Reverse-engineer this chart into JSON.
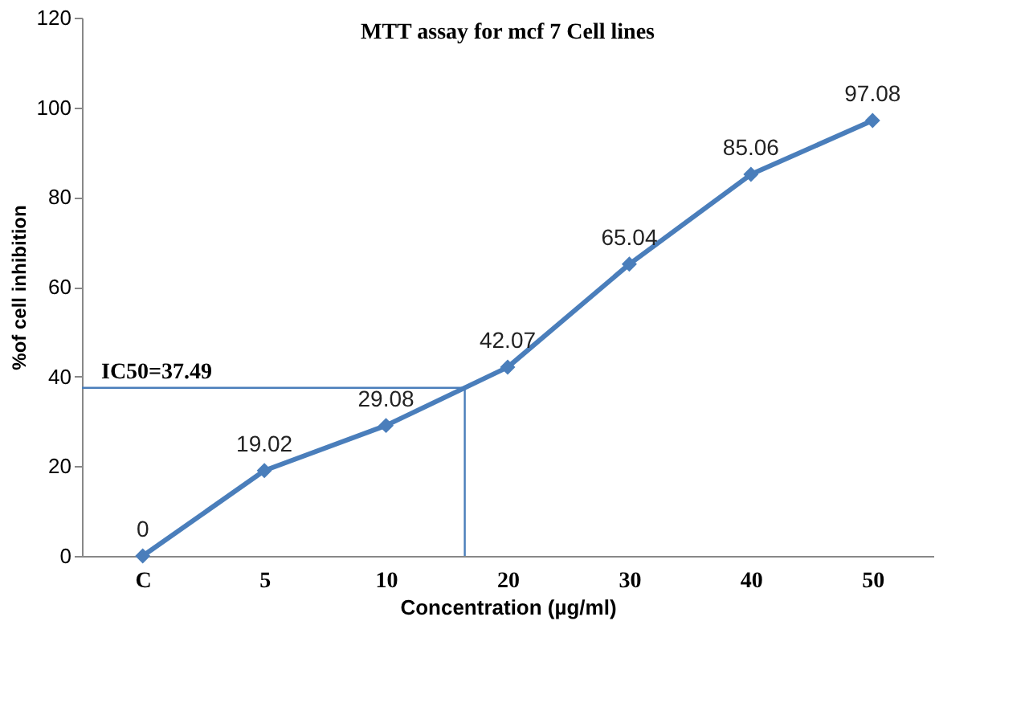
{
  "chart_data": {
    "type": "line",
    "title": "MTT assay for mcf 7 Cell lines",
    "xlabel": "Concentration (µg/ml)",
    "ylabel": "%of cell inhibition",
    "categories": [
      "C",
      "5",
      "10",
      "20",
      "30",
      "40",
      "50"
    ],
    "series": [
      {
        "color": "#4a7ebb",
        "values": [
          0,
          19.02,
          29.08,
          42.07,
          65.04,
          85.06,
          97.08
        ]
      }
    ],
    "ylim": [
      0,
      120
    ],
    "yticks": [
      0,
      20,
      40,
      60,
      80,
      100,
      120
    ],
    "grid": false,
    "marker": "diamond",
    "line_style": "solid",
    "data_labels": true,
    "ref_lines": [
      {
        "axis": "y",
        "value": 37.49,
        "label": "IC50=37.49",
        "color": "#4a7ebb"
      }
    ]
  }
}
